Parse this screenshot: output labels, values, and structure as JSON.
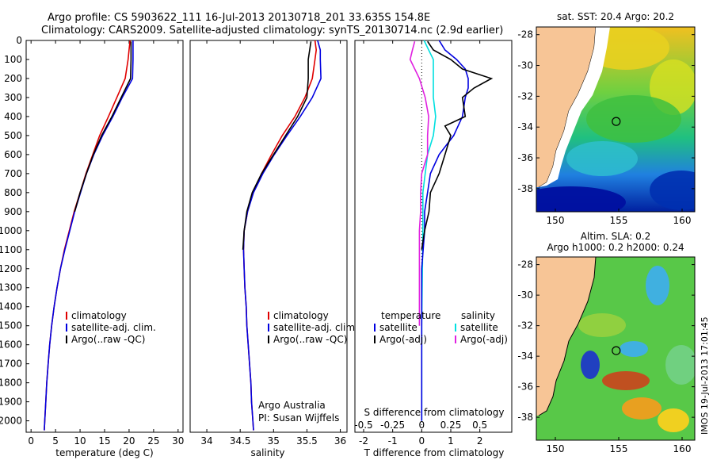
{
  "header": {
    "title_line1": "Argo profile: CS 5903622_111 16-Jul-2013 20130718_201 33.635S 154.8E",
    "title_line2": "Climatology: CARS2009. Satellite-adjusted climatology: synTS_20130714.nc (2.9d earlier)"
  },
  "footer_stamp": "IMOS 19-Jul-2013 17:01:45",
  "colors": {
    "climatology": "#e00000",
    "satellite": "#0000e0",
    "argo": "#000000",
    "satellite_salinity": "#00e0e0",
    "argo_salinity": "#e020e0",
    "land": "#f7c596"
  },
  "depth_axis": {
    "ticks": [
      "0",
      "100",
      "200",
      "300",
      "400",
      "500",
      "600",
      "700",
      "800",
      "900",
      "1000",
      "1100",
      "1200",
      "1300",
      "1400",
      "1500",
      "1600",
      "1700",
      "1800",
      "1900",
      "2000"
    ]
  },
  "chart_data": [
    {
      "type": "line",
      "id": "temperature",
      "xlabel": "temperature (deg C)",
      "xlim": [
        -1,
        31
      ],
      "ylim": [
        0,
        2060
      ],
      "xticks": [
        "0",
        "5",
        "10",
        "15",
        "20",
        "25",
        "30"
      ],
      "legend": [
        "climatology",
        "satellite-adj. clim.",
        "Argo(..raw -QC)"
      ],
      "series": [
        {
          "name": "climatology",
          "color": "climatology",
          "points": [
            [
              20.2,
              0
            ],
            [
              20.0,
              50
            ],
            [
              19.8,
              100
            ],
            [
              19.2,
              200
            ],
            [
              17.5,
              300
            ],
            [
              15.8,
              400
            ],
            [
              14.0,
              500
            ],
            [
              12.6,
              600
            ],
            [
              11.2,
              700
            ],
            [
              10.0,
              800
            ],
            [
              8.8,
              900
            ],
            [
              7.8,
              1000
            ],
            [
              6.8,
              1100
            ],
            [
              6.0,
              1200
            ],
            [
              5.3,
              1300
            ],
            [
              4.7,
              1400
            ],
            [
              4.2,
              1500
            ],
            [
              3.8,
              1600
            ],
            [
              3.5,
              1700
            ],
            [
              3.2,
              1800
            ],
            [
              3.0,
              1900
            ],
            [
              2.8,
              2000
            ],
            [
              2.7,
              2050
            ]
          ]
        },
        {
          "name": "satellite-adj. clim.",
          "color": "satellite",
          "points": [
            [
              20.8,
              0
            ],
            [
              20.8,
              100
            ],
            [
              20.7,
              200
            ],
            [
              18.6,
              300
            ],
            [
              16.7,
              400
            ],
            [
              14.6,
              500
            ],
            [
              12.8,
              600
            ],
            [
              11.3,
              700
            ],
            [
              10.1,
              800
            ],
            [
              8.9,
              900
            ],
            [
              7.9,
              1000
            ],
            [
              6.9,
              1100
            ],
            [
              6.0,
              1200
            ],
            [
              5.3,
              1300
            ],
            [
              4.7,
              1400
            ],
            [
              4.2,
              1500
            ],
            [
              3.8,
              1600
            ],
            [
              3.5,
              1700
            ],
            [
              3.2,
              1800
            ],
            [
              3.0,
              1900
            ],
            [
              2.8,
              2000
            ],
            [
              2.7,
              2050
            ]
          ]
        },
        {
          "name": "Argo(..raw -QC)",
          "color": "argo",
          "points": [
            [
              20.4,
              5
            ],
            [
              20.4,
              100
            ],
            [
              20.3,
              200
            ],
            [
              18.4,
              300
            ],
            [
              16.5,
              400
            ],
            [
              14.4,
              500
            ],
            [
              12.7,
              600
            ],
            [
              11.3,
              700
            ],
            [
              10.0,
              800
            ],
            [
              8.9,
              900
            ]
          ]
        }
      ]
    },
    {
      "type": "line",
      "id": "salinity",
      "xlabel": "salinity",
      "xlim": [
        33.75,
        36.1
      ],
      "ylim": [
        0,
        2060
      ],
      "xticks": [
        "34",
        "34.5",
        "35",
        "35.5",
        "36"
      ],
      "legend": [
        "climatology",
        "satellite-adj. clim.",
        "Argo(..raw -QC)"
      ],
      "annotation": [
        "Argo Australia",
        "PI: Susan Wijffels"
      ],
      "series": [
        {
          "name": "climatology",
          "color": "climatology",
          "points": [
            [
              35.62,
              0
            ],
            [
              35.64,
              50
            ],
            [
              35.62,
              100
            ],
            [
              35.58,
              200
            ],
            [
              35.47,
              300
            ],
            [
              35.32,
              400
            ],
            [
              35.13,
              500
            ],
            [
              34.97,
              600
            ],
            [
              34.82,
              700
            ],
            [
              34.69,
              800
            ],
            [
              34.61,
              900
            ],
            [
              34.56,
              1000
            ],
            [
              34.55,
              1100
            ],
            [
              34.56,
              1200
            ],
            [
              34.57,
              1300
            ],
            [
              34.59,
              1400
            ],
            [
              34.6,
              1500
            ],
            [
              34.62,
              1600
            ],
            [
              34.64,
              1700
            ],
            [
              34.66,
              1800
            ],
            [
              34.67,
              1900
            ],
            [
              34.69,
              2000
            ],
            [
              34.7,
              2050
            ]
          ]
        },
        {
          "name": "satellite-adj. clim.",
          "color": "satellite",
          "points": [
            [
              35.66,
              0
            ],
            [
              35.7,
              50
            ],
            [
              35.7,
              100
            ],
            [
              35.71,
              200
            ],
            [
              35.58,
              300
            ],
            [
              35.4,
              400
            ],
            [
              35.2,
              500
            ],
            [
              35.01,
              600
            ],
            [
              34.84,
              700
            ],
            [
              34.7,
              800
            ],
            [
              34.61,
              900
            ],
            [
              34.56,
              1000
            ],
            [
              34.55,
              1100
            ],
            [
              34.56,
              1200
            ],
            [
              34.57,
              1300
            ],
            [
              34.59,
              1400
            ],
            [
              34.6,
              1500
            ],
            [
              34.62,
              1600
            ],
            [
              34.64,
              1700
            ],
            [
              34.66,
              1800
            ],
            [
              34.67,
              1900
            ],
            [
              34.69,
              2000
            ],
            [
              34.7,
              2050
            ]
          ]
        },
        {
          "name": "Argo(..raw -QC)",
          "color": "argo",
          "points": [
            [
              35.56,
              5
            ],
            [
              35.52,
              100
            ],
            [
              35.52,
              200
            ],
            [
              35.5,
              300
            ],
            [
              35.36,
              400
            ],
            [
              35.18,
              500
            ],
            [
              35.0,
              600
            ],
            [
              34.82,
              700
            ],
            [
              34.68,
              800
            ],
            [
              34.6,
              900
            ],
            [
              34.56,
              1000
            ],
            [
              34.54,
              1100
            ]
          ]
        }
      ]
    },
    {
      "type": "line",
      "id": "difference",
      "xlabel": "T difference from climatology",
      "xlabel_top": "S difference from climatology",
      "xlim": [
        -2.3,
        3.1
      ],
      "ylim": [
        0,
        2060
      ],
      "xticks": [
        "-2",
        "-1",
        "0",
        "1",
        "2"
      ],
      "xticks_s": [
        "-0.5",
        "-0.25",
        "0",
        "0.25",
        "0.5"
      ],
      "legend_t": [
        "temperature",
        "satellite",
        "Argo(-adj)"
      ],
      "legend_s": [
        "salinity",
        "satellite",
        "Argo(-adj)"
      ],
      "series": [
        {
          "name": "satellite",
          "group": "temperature",
          "color": "satellite",
          "points": [
            [
              0.6,
              0
            ],
            [
              0.8,
              50
            ],
            [
              1.2,
              100
            ],
            [
              1.5,
              150
            ],
            [
              1.6,
              200
            ],
            [
              1.6,
              250
            ],
            [
              1.5,
              300
            ],
            [
              1.4,
              400
            ],
            [
              1.1,
              500
            ],
            [
              0.6,
              600
            ],
            [
              0.3,
              700
            ],
            [
              0.2,
              800
            ],
            [
              0.1,
              900
            ],
            [
              0.1,
              1000
            ],
            [
              0.0,
              1200
            ],
            [
              0.0,
              1500
            ],
            [
              0.0,
              2000
            ]
          ]
        },
        {
          "name": "Argo(-adj)",
          "group": "temperature",
          "color": "argo",
          "points": [
            [
              0.2,
              5
            ],
            [
              0.4,
              50
            ],
            [
              1.0,
              100
            ],
            [
              1.4,
              150
            ],
            [
              2.4,
              200
            ],
            [
              1.8,
              250
            ],
            [
              1.4,
              300
            ],
            [
              1.5,
              400
            ],
            [
              0.8,
              450
            ],
            [
              1.0,
              500
            ],
            [
              0.8,
              600
            ],
            [
              0.6,
              700
            ],
            [
              0.3,
              800
            ],
            [
              0.25,
              900
            ],
            [
              0.1,
              1000
            ],
            [
              0.0,
              1100
            ]
          ]
        },
        {
          "name": "satellite",
          "group": "salinity",
          "color": "satellite_salinity",
          "points": [
            [
              0.02,
              0
            ],
            [
              0.06,
              50
            ],
            [
              0.1,
              100
            ],
            [
              0.1,
              200
            ],
            [
              0.1,
              300
            ],
            [
              0.12,
              400
            ],
            [
              0.1,
              500
            ],
            [
              0.05,
              600
            ],
            [
              0.03,
              700
            ],
            [
              0.01,
              800
            ],
            [
              0.01,
              1000
            ],
            [
              0.0,
              1500
            ],
            [
              0.0,
              2000
            ]
          ]
        },
        {
          "name": "Argo(-adj)",
          "group": "salinity",
          "color": "argo_salinity",
          "points": [
            [
              -0.06,
              5
            ],
            [
              -0.08,
              50
            ],
            [
              -0.1,
              100
            ],
            [
              -0.02,
              200
            ],
            [
              0.03,
              300
            ],
            [
              0.06,
              400
            ],
            [
              0.05,
              500
            ],
            [
              0.05,
              600
            ],
            [
              0.0,
              700
            ],
            [
              -0.01,
              800
            ],
            [
              -0.01,
              900
            ],
            [
              -0.02,
              1000
            ],
            [
              -0.02,
              1500
            ]
          ]
        }
      ]
    },
    {
      "type": "heatmap",
      "id": "sst_map",
      "title": "sat. SST: 20.4  Argo: 20.2",
      "xlim": [
        148.5,
        161
      ],
      "ylim": [
        -39.5,
        -27.5
      ],
      "xticks": [
        "150",
        "155",
        "160"
      ],
      "yticks": [
        "-28",
        "-30",
        "-32",
        "-34",
        "-36",
        "-38"
      ],
      "argo_position": [
        154.8,
        -33.635
      ]
    },
    {
      "type": "heatmap",
      "id": "sla_map",
      "title_line1": "Altim. SLA: 0.2",
      "title_line2": "Argo h1000: 0.2  h2000: 0.24",
      "xlim": [
        148.5,
        161
      ],
      "ylim": [
        -39.5,
        -27.5
      ],
      "xticks": [
        "150",
        "155",
        "160"
      ],
      "yticks": [
        "-28",
        "-30",
        "-32",
        "-34",
        "-36",
        "-38"
      ],
      "argo_position": [
        154.8,
        -33.635
      ]
    }
  ]
}
